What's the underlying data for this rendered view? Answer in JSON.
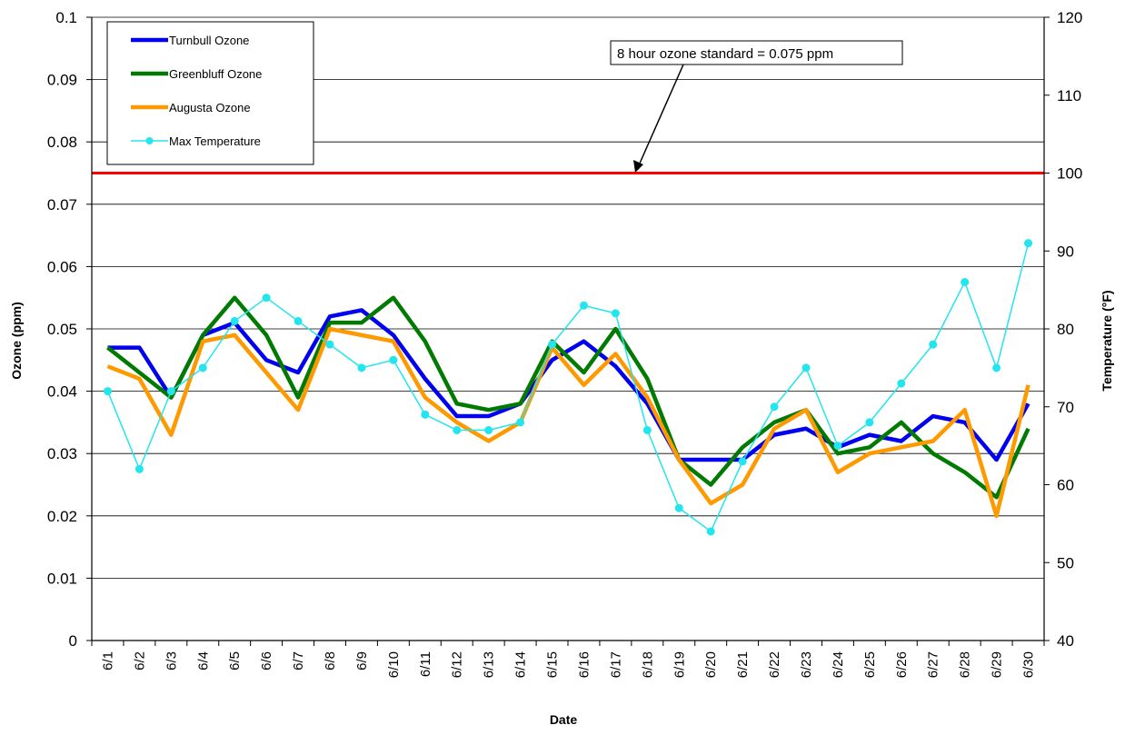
{
  "chart_data": {
    "type": "line",
    "x": [
      "6/1",
      "6/2",
      "6/3",
      "6/4",
      "6/5",
      "6/6",
      "6/7",
      "6/8",
      "6/9",
      "6/10",
      "6/11",
      "6/12",
      "6/13",
      "6/14",
      "6/15",
      "6/16",
      "6/17",
      "6/18",
      "6/19",
      "6/20",
      "6/21",
      "6/22",
      "6/23",
      "6/24",
      "6/25",
      "6/26",
      "6/27",
      "6/28",
      "6/29",
      "6/30"
    ],
    "xlabel": "Date",
    "ylabel": "Ozone (ppm)",
    "y2label": "Temperature (°F)",
    "ylim": [
      0,
      0.1
    ],
    "y2lim": [
      40,
      120
    ],
    "yticks": [
      "0",
      "0.01",
      "0.02",
      "0.03",
      "0.04",
      "0.05",
      "0.06",
      "0.07",
      "0.08",
      "0.09",
      "0.1"
    ],
    "y2ticks": [
      "40",
      "50",
      "60",
      "70",
      "80",
      "90",
      "100",
      "110",
      "120"
    ],
    "grid": true,
    "legend_position": "top-left",
    "series": [
      {
        "name": "Turnbull Ozone",
        "axis": "left",
        "color": "#0000ee",
        "values": [
          0.047,
          0.047,
          0.039,
          0.049,
          0.051,
          0.045,
          0.043,
          0.052,
          0.053,
          0.049,
          0.042,
          0.036,
          0.036,
          0.038,
          0.045,
          0.048,
          0.044,
          0.038,
          0.029,
          0.029,
          0.029,
          0.033,
          0.034,
          0.031,
          0.033,
          0.032,
          0.036,
          0.035,
          0.029,
          0.038
        ]
      },
      {
        "name": "Greenbluff Ozone",
        "axis": "left",
        "color": "#007a00",
        "values": [
          0.047,
          0.043,
          0.039,
          0.049,
          0.055,
          0.049,
          0.039,
          0.051,
          0.051,
          0.055,
          0.048,
          0.038,
          0.037,
          0.038,
          0.048,
          0.043,
          0.05,
          0.042,
          0.029,
          0.025,
          0.031,
          0.035,
          0.037,
          0.03,
          0.031,
          0.035,
          0.03,
          0.027,
          0.023,
          0.034
        ]
      },
      {
        "name": "Augusta Ozone",
        "axis": "left",
        "color": "#ff9900",
        "values": [
          0.044,
          0.042,
          0.033,
          0.048,
          0.049,
          0.043,
          0.037,
          0.05,
          0.049,
          0.048,
          0.039,
          0.035,
          0.032,
          0.035,
          0.047,
          0.041,
          0.046,
          0.039,
          0.029,
          0.022,
          0.025,
          0.034,
          0.037,
          0.027,
          0.03,
          0.031,
          0.032,
          0.037,
          0.02,
          0.041
        ]
      },
      {
        "name": "Max Temperature",
        "axis": "right",
        "color": "#22e5ee",
        "marker": "circle",
        "values": [
          72,
          62,
          72,
          75,
          81,
          84,
          81,
          78,
          75,
          76,
          69,
          67,
          67,
          68,
          78,
          83,
          82,
          67,
          57,
          54,
          63,
          70,
          75,
          65,
          68,
          73,
          78,
          86,
          75,
          91
        ]
      }
    ],
    "reference_line": {
      "value": 0.075,
      "axis": "left",
      "color": "#ff0000"
    },
    "annotation": "8 hour ozone standard = 0.075 ppm"
  }
}
